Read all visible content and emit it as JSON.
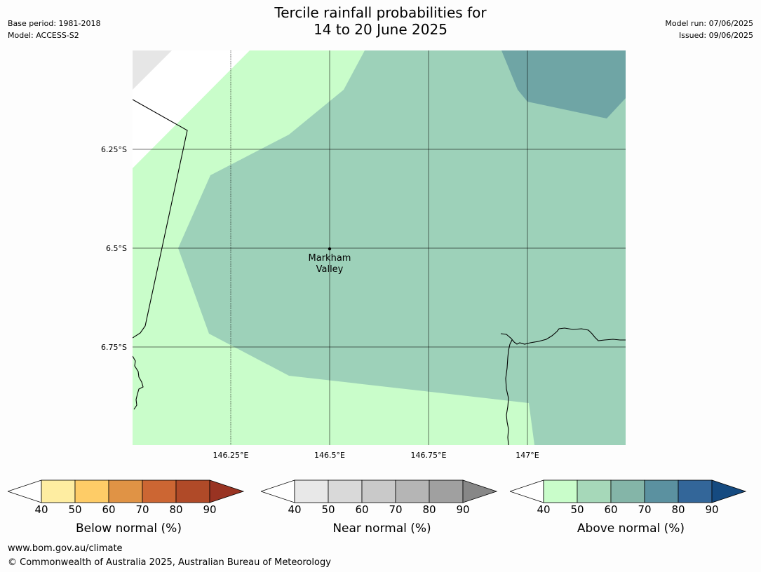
{
  "header": {
    "base_period": "Base period: 1981-2018",
    "model": "Model: ACCESS-S2",
    "model_run": "Model run: 07/06/2025",
    "issued": "Issued: 09/06/2025",
    "title_line1": "Tercile rainfall probabilities for",
    "title_line2": "14 to 20 June 2025"
  },
  "map": {
    "lat_labels": [
      "6.25°S",
      "6.5°S",
      "6.75°S"
    ],
    "lon_labels": [
      "146.25°E",
      "146.5°E",
      "146.75°E",
      "147°E"
    ],
    "place_line1": "Markham",
    "place_line2": "Valley",
    "colors": {
      "above_40_50": "#c9fdca",
      "above_50_60": "#9dd1b9",
      "above_60_70": "#6fa5a5",
      "near_normal_light": "#e6e6e6"
    }
  },
  "legends": [
    {
      "label": "Below normal (%)",
      "ticks": [
        "40",
        "50",
        "60",
        "70",
        "80",
        "90"
      ],
      "colors": [
        "#ffffff",
        "#feeda1",
        "#fecc67",
        "#e09345",
        "#cc6633",
        "#b04a28",
        "#993322"
      ]
    },
    {
      "label": "Near normal (%)",
      "ticks": [
        "40",
        "50",
        "60",
        "70",
        "80",
        "90"
      ],
      "colors": [
        "#ffffff",
        "#e8e8e8",
        "#d9d9d9",
        "#c9c9c9",
        "#b5b5b5",
        "#a0a0a0",
        "#878787"
      ]
    },
    {
      "label": "Above normal (%)",
      "ticks": [
        "40",
        "50",
        "60",
        "70",
        "80",
        "90"
      ],
      "colors": [
        "#ffffff",
        "#c9fdca",
        "#a6d8b9",
        "#84b5a8",
        "#5b91a0",
        "#336699",
        "#154a80"
      ]
    }
  ],
  "footer": {
    "url": "www.bom.gov.au/climate",
    "copyright": "© Commonwealth of Australia 2025, Australian Bureau of Meteorology"
  }
}
